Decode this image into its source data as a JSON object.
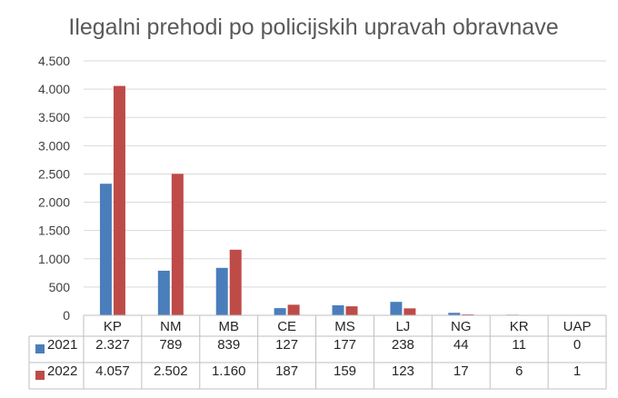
{
  "chart_data": {
    "type": "bar",
    "title": "Ilegalni prehodi po policijskih upravah obravnave",
    "categories": [
      "KP",
      "NM",
      "MB",
      "CE",
      "MS",
      "LJ",
      "NG",
      "KR",
      "UAP"
    ],
    "series": [
      {
        "name": "2021",
        "color": "#4a7ebb",
        "values": [
          2327,
          789,
          839,
          127,
          177,
          238,
          44,
          11,
          0
        ],
        "labels": [
          "2.327",
          "789",
          "839",
          "127",
          "177",
          "238",
          "44",
          "11",
          "0"
        ]
      },
      {
        "name": "2022",
        "color": "#be4b48",
        "values": [
          4057,
          2502,
          1160,
          187,
          159,
          123,
          17,
          6,
          1
        ],
        "labels": [
          "4.057",
          "2.502",
          "1.160",
          "187",
          "159",
          "123",
          "17",
          "6",
          "1"
        ]
      }
    ],
    "ylim": [
      0,
      4500
    ],
    "yticks": [
      0,
      500,
      1000,
      1500,
      2000,
      2500,
      3000,
      3500,
      4000,
      4500
    ],
    "ytick_labels": [
      "0",
      "500",
      "1.000",
      "1.500",
      "2.000",
      "2.500",
      "3.000",
      "3.500",
      "4.000",
      "4.500"
    ],
    "grid": true,
    "data_table": true
  }
}
